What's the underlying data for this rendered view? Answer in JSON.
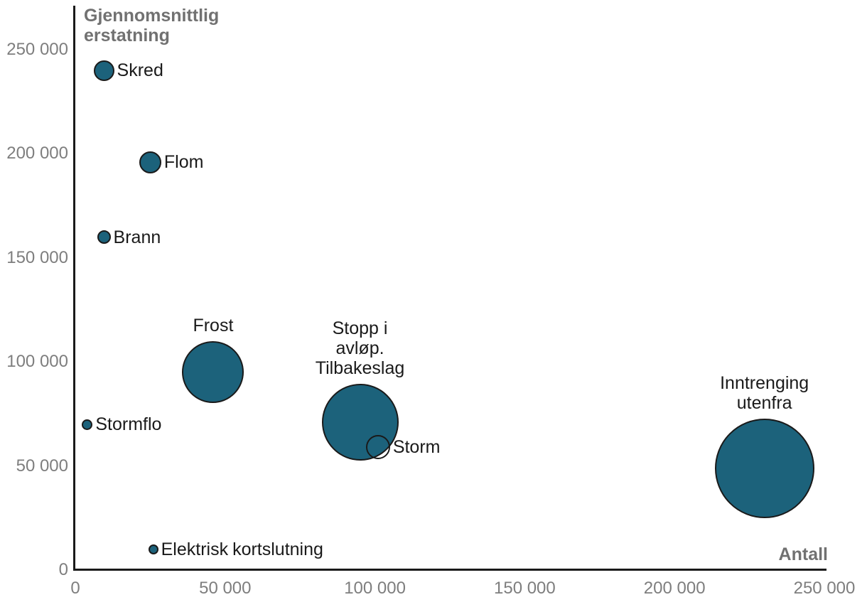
{
  "page": {
    "background": "#ffffff"
  },
  "chart_data": {
    "type": "scatter",
    "subtype": "bubble",
    "title": "",
    "xlabel": "Antall",
    "ylabel": "Gjennomsnittlig erstatning",
    "xlim": [
      0,
      250000
    ],
    "ylim": [
      0,
      250000
    ],
    "grid": false,
    "legend": false,
    "x_tick_values": [
      0,
      50000,
      100000,
      150000,
      200000,
      250000
    ],
    "x_tick_labels": [
      "0",
      "50 000",
      "100 000",
      "150 000",
      "200 000",
      "250 000"
    ],
    "y_tick_values": [
      0,
      50000,
      100000,
      150000,
      200000,
      250000
    ],
    "y_tick_labels": [
      "0",
      "50 000",
      "100 000",
      "150 000",
      "200 000",
      "250 000"
    ],
    "colors": {
      "bubble_fill": "#1c627b",
      "bubble_stroke": "#1a1a1a",
      "axis": "#1a1a1a",
      "tick_text": "#7e7e7e",
      "axis_title_text": "#717171",
      "label_text": "#1a1a1a"
    },
    "points": [
      {
        "name": "Skred",
        "label_lines": [
          "Skred"
        ],
        "x": 9500,
        "y": 240000,
        "radius_px": 14.5,
        "label_pos": "right",
        "filled": true
      },
      {
        "name": "Flom",
        "label_lines": [
          "Flom"
        ],
        "x": 25000,
        "y": 196000,
        "radius_px": 15.5,
        "label_pos": "right",
        "filled": true
      },
      {
        "name": "Brann",
        "label_lines": [
          "Brann"
        ],
        "x": 9500,
        "y": 160000,
        "radius_px": 9.5,
        "label_pos": "right",
        "filled": true
      },
      {
        "name": "Frost",
        "label_lines": [
          "Frost"
        ],
        "x": 46000,
        "y": 95000,
        "radius_px": 43.5,
        "label_pos": "above",
        "filled": true
      },
      {
        "name": "Stormflo",
        "label_lines": [
          "Stormflo"
        ],
        "x": 4000,
        "y": 70000,
        "radius_px": 7.5,
        "label_pos": "right",
        "filled": true
      },
      {
        "name": "Stopp i avløp. Tilbakeslag",
        "label_lines": [
          "Stopp i",
          "avløp.",
          "Tilbakeslag"
        ],
        "x": 95000,
        "y": 71000,
        "radius_px": 54,
        "label_pos": "above",
        "filled": true
      },
      {
        "name": "Storm",
        "label_lines": [
          "Storm"
        ],
        "x": 101000,
        "y": 59000,
        "radius_px": 17,
        "label_pos": "right",
        "filled": false
      },
      {
        "name": "Elektrisk kortslutning",
        "label_lines": [
          "Elektrisk",
          "kortslutning"
        ],
        "x": 26000,
        "y": 10000,
        "radius_px": 7,
        "label_pos": "right",
        "filled": true,
        "label_bg": true
      },
      {
        "name": "Inntrenging utenfra",
        "label_lines": [
          "Inntrenging",
          "utenfra"
        ],
        "x": 230000,
        "y": 49000,
        "radius_px": 70,
        "label_pos": "above",
        "filled": true
      }
    ]
  }
}
